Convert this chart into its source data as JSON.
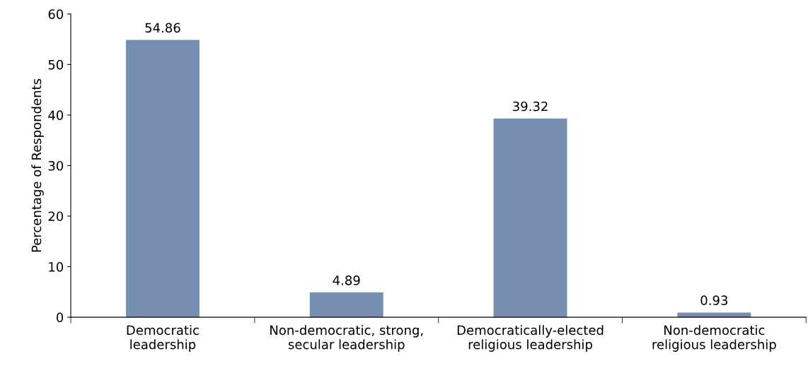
{
  "chart_data": {
    "type": "bar",
    "ylabel": "Percentage of Respondents",
    "categories": [
      "Democratic\nleadership",
      "Non-democratic, strong,\nsecular leadership",
      "Democratically-elected\nreligious leadership",
      "Non-democratic\nreligious leadership"
    ],
    "values": [
      54.86,
      4.89,
      39.32,
      0.93
    ],
    "color": "#768fb0",
    "ylim": [
      0,
      60
    ],
    "yticks": [
      0,
      10,
      20,
      30,
      40,
      50,
      60
    ],
    "grid": false,
    "data_labels": true
  }
}
